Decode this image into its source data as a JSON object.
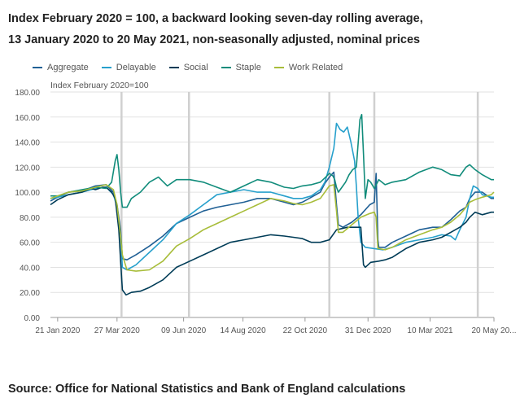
{
  "title_line1": "Index February 2020 = 100, a backward looking seven-day rolling average,",
  "title_line2": "13 January 2020 to 20 May 2021, non-seasonally adjusted, nominal prices",
  "source": "Source: Office for National Statistics and Bank of England calculations",
  "chart_data": {
    "type": "line",
    "ylabel": "Index February 2020=100",
    "ylim": [
      0,
      180
    ],
    "yticks": [
      "0.00",
      "20.00",
      "40.00",
      "60.00",
      "80.00",
      "100.00",
      "120.00",
      "140.00",
      "160.00",
      "180.00"
    ],
    "xlabels": [
      "21 Jan 2020",
      "27 Mar 2020",
      "09 Jun 2020",
      "14 Aug 2020",
      "22 Oct 2020",
      "31 Dec 2020",
      "10 Mar 2021",
      "20 May 20..."
    ],
    "xlabel_days": [
      8,
      74,
      148,
      214,
      283,
      353,
      422,
      493
    ],
    "reference_line_days": [
      79,
      154,
      310,
      360,
      475
    ],
    "x_range_days": [
      0,
      493
    ],
    "series": [
      {
        "name": "Aggregate",
        "color": "#206095",
        "points": [
          [
            0,
            93
          ],
          [
            8,
            96
          ],
          [
            20,
            100
          ],
          [
            35,
            101
          ],
          [
            50,
            105
          ],
          [
            62,
            106
          ],
          [
            70,
            100
          ],
          [
            74,
            90
          ],
          [
            78,
            70
          ],
          [
            80,
            47
          ],
          [
            85,
            46
          ],
          [
            95,
            50
          ],
          [
            110,
            57
          ],
          [
            125,
            65
          ],
          [
            140,
            75
          ],
          [
            155,
            80
          ],
          [
            170,
            85
          ],
          [
            185,
            88
          ],
          [
            200,
            90
          ],
          [
            215,
            92
          ],
          [
            230,
            95
          ],
          [
            245,
            95
          ],
          [
            260,
            92
          ],
          [
            270,
            90
          ],
          [
            280,
            92
          ],
          [
            290,
            96
          ],
          [
            300,
            100
          ],
          [
            305,
            107
          ],
          [
            310,
            112
          ],
          [
            315,
            116
          ],
          [
            318,
            90
          ],
          [
            320,
            74
          ],
          [
            325,
            72
          ],
          [
            335,
            76
          ],
          [
            345,
            82
          ],
          [
            355,
            90
          ],
          [
            360,
            92
          ],
          [
            362,
            115
          ],
          [
            364,
            62
          ],
          [
            365,
            56
          ],
          [
            372,
            56
          ],
          [
            380,
            60
          ],
          [
            395,
            65
          ],
          [
            410,
            70
          ],
          [
            425,
            72
          ],
          [
            435,
            72
          ],
          [
            445,
            78
          ],
          [
            455,
            85
          ],
          [
            462,
            88
          ],
          [
            466,
            95
          ],
          [
            472,
            100
          ],
          [
            480,
            100
          ],
          [
            490,
            95
          ],
          [
            493,
            95
          ]
        ]
      },
      {
        "name": "Delayable",
        "color": "#27a0cc",
        "points": [
          [
            0,
            95
          ],
          [
            8,
            96
          ],
          [
            20,
            98
          ],
          [
            35,
            100
          ],
          [
            50,
            103
          ],
          [
            62,
            104
          ],
          [
            70,
            98
          ],
          [
            74,
            88
          ],
          [
            78,
            65
          ],
          [
            80,
            40
          ],
          [
            85,
            38
          ],
          [
            95,
            42
          ],
          [
            110,
            52
          ],
          [
            125,
            62
          ],
          [
            140,
            75
          ],
          [
            155,
            82
          ],
          [
            170,
            90
          ],
          [
            185,
            98
          ],
          [
            200,
            100
          ],
          [
            215,
            102
          ],
          [
            230,
            100
          ],
          [
            245,
            100
          ],
          [
            260,
            97
          ],
          [
            270,
            95
          ],
          [
            280,
            95
          ],
          [
            290,
            97
          ],
          [
            300,
            102
          ],
          [
            305,
            108
          ],
          [
            310,
            120
          ],
          [
            315,
            135
          ],
          [
            318,
            155
          ],
          [
            322,
            150
          ],
          [
            326,
            148
          ],
          [
            330,
            152
          ],
          [
            334,
            140
          ],
          [
            338,
            125
          ],
          [
            340,
            105
          ],
          [
            342,
            80
          ],
          [
            345,
            60
          ],
          [
            350,
            56
          ],
          [
            360,
            55
          ],
          [
            370,
            54
          ],
          [
            380,
            56
          ],
          [
            395,
            60
          ],
          [
            410,
            62
          ],
          [
            425,
            64
          ],
          [
            435,
            66
          ],
          [
            445,
            65
          ],
          [
            450,
            62
          ],
          [
            455,
            70
          ],
          [
            462,
            80
          ],
          [
            466,
            95
          ],
          [
            470,
            105
          ],
          [
            475,
            103
          ],
          [
            480,
            98
          ],
          [
            490,
            96
          ],
          [
            493,
            96
          ]
        ]
      },
      {
        "name": "Social",
        "color": "#003c57",
        "points": [
          [
            0,
            90
          ],
          [
            8,
            94
          ],
          [
            20,
            98
          ],
          [
            35,
            100
          ],
          [
            45,
            103
          ],
          [
            50,
            102
          ],
          [
            58,
            104
          ],
          [
            62,
            104
          ],
          [
            68,
            100
          ],
          [
            72,
            95
          ],
          [
            76,
            70
          ],
          [
            78,
            45
          ],
          [
            80,
            22
          ],
          [
            84,
            18
          ],
          [
            90,
            20
          ],
          [
            100,
            21
          ],
          [
            110,
            24
          ],
          [
            125,
            30
          ],
          [
            140,
            40
          ],
          [
            155,
            45
          ],
          [
            170,
            50
          ],
          [
            185,
            55
          ],
          [
            200,
            60
          ],
          [
            215,
            62
          ],
          [
            230,
            64
          ],
          [
            245,
            66
          ],
          [
            260,
            65
          ],
          [
            270,
            64
          ],
          [
            280,
            63
          ],
          [
            290,
            60
          ],
          [
            300,
            60
          ],
          [
            310,
            62
          ],
          [
            318,
            70
          ],
          [
            330,
            72
          ],
          [
            340,
            72
          ],
          [
            345,
            72
          ],
          [
            348,
            42
          ],
          [
            350,
            40
          ],
          [
            356,
            44
          ],
          [
            365,
            45
          ],
          [
            372,
            46
          ],
          [
            380,
            48
          ],
          [
            395,
            55
          ],
          [
            410,
            60
          ],
          [
            425,
            62
          ],
          [
            435,
            64
          ],
          [
            445,
            68
          ],
          [
            455,
            72
          ],
          [
            462,
            76
          ],
          [
            466,
            80
          ],
          [
            472,
            84
          ],
          [
            480,
            82
          ],
          [
            490,
            84
          ],
          [
            493,
            84
          ]
        ]
      },
      {
        "name": "Staple",
        "color": "#118c7b",
        "points": [
          [
            0,
            97
          ],
          [
            8,
            97
          ],
          [
            20,
            100
          ],
          [
            35,
            102
          ],
          [
            50,
            104
          ],
          [
            62,
            103
          ],
          [
            68,
            108
          ],
          [
            72,
            125
          ],
          [
            74,
            130
          ],
          [
            76,
            118
          ],
          [
            78,
            100
          ],
          [
            80,
            88
          ],
          [
            85,
            88
          ],
          [
            90,
            95
          ],
          [
            100,
            100
          ],
          [
            110,
            108
          ],
          [
            120,
            112
          ],
          [
            130,
            105
          ],
          [
            140,
            110
          ],
          [
            155,
            110
          ],
          [
            170,
            108
          ],
          [
            185,
            104
          ],
          [
            200,
            100
          ],
          [
            215,
            105
          ],
          [
            230,
            110
          ],
          [
            245,
            108
          ],
          [
            260,
            104
          ],
          [
            270,
            103
          ],
          [
            280,
            105
          ],
          [
            290,
            106
          ],
          [
            300,
            108
          ],
          [
            306,
            112
          ],
          [
            310,
            115
          ],
          [
            314,
            113
          ],
          [
            316,
            110
          ],
          [
            318,
            104
          ],
          [
            320,
            100
          ],
          [
            324,
            104
          ],
          [
            328,
            108
          ],
          [
            332,
            114
          ],
          [
            336,
            118
          ],
          [
            340,
            120
          ],
          [
            344,
            158
          ],
          [
            346,
            162
          ],
          [
            348,
            130
          ],
          [
            350,
            95
          ],
          [
            353,
            110
          ],
          [
            356,
            108
          ],
          [
            360,
            103
          ],
          [
            365,
            110
          ],
          [
            372,
            106
          ],
          [
            380,
            108
          ],
          [
            395,
            110
          ],
          [
            410,
            116
          ],
          [
            425,
            120
          ],
          [
            435,
            118
          ],
          [
            445,
            114
          ],
          [
            455,
            113
          ],
          [
            462,
            120
          ],
          [
            466,
            122
          ],
          [
            472,
            118
          ],
          [
            480,
            114
          ],
          [
            490,
            110
          ],
          [
            493,
            110
          ]
        ]
      },
      {
        "name": "Work Related",
        "color": "#a8bd3a",
        "points": [
          [
            0,
            95
          ],
          [
            8,
            97
          ],
          [
            20,
            100
          ],
          [
            35,
            101
          ],
          [
            50,
            104
          ],
          [
            62,
            106
          ],
          [
            70,
            102
          ],
          [
            74,
            90
          ],
          [
            78,
            65
          ],
          [
            80,
            50
          ],
          [
            85,
            38
          ],
          [
            95,
            37
          ],
          [
            110,
            38
          ],
          [
            125,
            45
          ],
          [
            140,
            57
          ],
          [
            155,
            63
          ],
          [
            170,
            70
          ],
          [
            185,
            75
          ],
          [
            200,
            80
          ],
          [
            215,
            85
          ],
          [
            230,
            90
          ],
          [
            245,
            95
          ],
          [
            260,
            93
          ],
          [
            270,
            91
          ],
          [
            280,
            90
          ],
          [
            290,
            92
          ],
          [
            300,
            95
          ],
          [
            305,
            100
          ],
          [
            310,
            105
          ],
          [
            315,
            106
          ],
          [
            318,
            85
          ],
          [
            320,
            68
          ],
          [
            325,
            68
          ],
          [
            335,
            74
          ],
          [
            345,
            80
          ],
          [
            355,
            83
          ],
          [
            360,
            84
          ],
          [
            362,
            80
          ],
          [
            364,
            55
          ],
          [
            365,
            55
          ],
          [
            372,
            54
          ],
          [
            380,
            56
          ],
          [
            395,
            62
          ],
          [
            410,
            66
          ],
          [
            425,
            70
          ],
          [
            435,
            72
          ],
          [
            445,
            76
          ],
          [
            455,
            82
          ],
          [
            462,
            88
          ],
          [
            466,
            92
          ],
          [
            472,
            94
          ],
          [
            480,
            96
          ],
          [
            490,
            98
          ],
          [
            493,
            100
          ]
        ]
      }
    ]
  }
}
